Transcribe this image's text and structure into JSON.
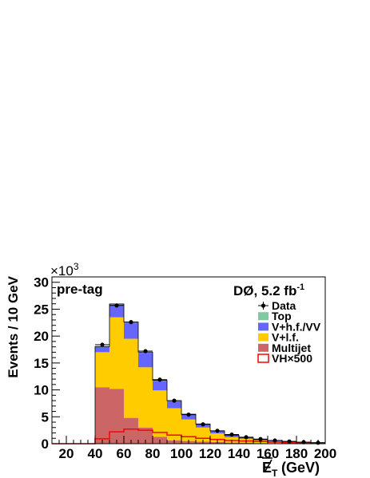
{
  "chart_data": {
    "type": "bar",
    "stacked": true,
    "bin_edges": [
      10,
      20,
      30,
      40,
      50,
      60,
      70,
      80,
      90,
      100,
      110,
      120,
      130,
      140,
      150,
      160,
      170,
      180,
      190,
      200
    ],
    "ylim": [
      0,
      31
    ],
    "xlim": [
      10,
      200
    ],
    "y_scale_label": "×10",
    "y_scale_exp": "3",
    "ylabel": "Events / 10 GeV",
    "xlabel_symbol": "E",
    "xlabel_sub": "T",
    "xlabel_unit": "(GeV)",
    "xticks": [
      "20",
      "40",
      "60",
      "80",
      "100",
      "120",
      "140",
      "160",
      "180",
      "200"
    ],
    "yticks": [
      "0",
      "5",
      "10",
      "15",
      "20",
      "25",
      "30"
    ],
    "annotation_left": "pre-tag",
    "annotation_right_main": "DØ, 5.2 fb",
    "annotation_right_exp": "-1",
    "series": [
      {
        "name": "Multijet",
        "color": "#cc6666",
        "values": [
          0,
          0,
          0,
          10.5,
          10.2,
          4.8,
          3.0,
          1.3,
          0.6,
          0.5,
          0.4,
          0.3,
          0.2,
          0.15,
          0.1,
          0.08,
          0.05,
          0.04,
          0.03
        ]
      },
      {
        "name": "V+l.f.",
        "color": "#ffcc00",
        "values": [
          0,
          0,
          0,
          6.5,
          13.3,
          14.7,
          11.2,
          8.6,
          6.0,
          4.0,
          2.6,
          1.6,
          1.0,
          0.75,
          0.5,
          0.37,
          0.25,
          0.16,
          0.1
        ]
      },
      {
        "name": "V+h.f./VV",
        "color": "#6666ff",
        "values": [
          0,
          0,
          0,
          1.0,
          2.4,
          3.0,
          2.7,
          1.8,
          1.3,
          0.9,
          0.6,
          0.4,
          0.3,
          0.2,
          0.15,
          0.1,
          0.08,
          0.05,
          0.04
        ]
      },
      {
        "name": "Top",
        "color": "#7fc9a3",
        "values": [
          0,
          0,
          0,
          0.05,
          0.08,
          0.1,
          0.12,
          0.1,
          0.09,
          0.08,
          0.07,
          0.06,
          0.05,
          0.04,
          0.03,
          0.03,
          0.02,
          0.02,
          0.01
        ]
      }
    ],
    "data": {
      "name": "Data",
      "values": [
        null,
        null,
        null,
        18.4,
        25.7,
        22.6,
        17.2,
        11.9,
        8.0,
        5.4,
        3.6,
        2.4,
        1.7,
        1.2,
        0.85,
        0.6,
        0.42,
        0.28,
        0.18
      ]
    },
    "signal": {
      "name": "VH×500",
      "color": "#ff0000",
      "values": [
        0,
        0,
        0,
        0.9,
        2.2,
        2.7,
        2.5,
        2.1,
        1.6,
        1.3,
        1.0,
        0.8,
        0.6,
        0.5,
        0.4,
        0.3,
        0.2,
        0.15,
        0.1
      ]
    },
    "legend": [
      {
        "label": "Data",
        "kind": "marker"
      },
      {
        "label": "Top",
        "kind": "fill",
        "color": "#7fc9a3"
      },
      {
        "label": "V+h.f./VV",
        "kind": "fill",
        "color": "#6666ff"
      },
      {
        "label": "V+l.f.",
        "kind": "fill",
        "color": "#ffcc00"
      },
      {
        "label": "Multijet",
        "kind": "fill",
        "color": "#cc6666"
      },
      {
        "label": "VH×500",
        "kind": "line",
        "color": "#ff0000"
      }
    ]
  }
}
